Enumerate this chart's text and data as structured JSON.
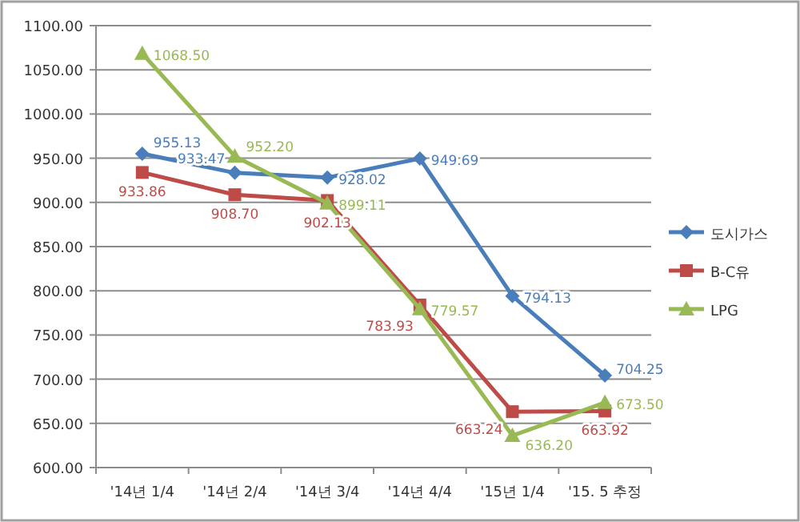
{
  "chart_data": {
    "type": "line",
    "categories": [
      "'14년 1/4",
      "'14년 2/4",
      "'14년 3/4",
      "'14년 4/4",
      "'15년 1/4",
      "'15. 5 추정"
    ],
    "series": [
      {
        "name": "도시가스",
        "color": "#4a7ebb",
        "marker": "diamond",
        "values": [
          955.13,
          933.47,
          928.02,
          949.69,
          794.13,
          704.25
        ],
        "value_labels": [
          "955.13",
          "933.47",
          "928.02",
          "949.69",
          "794.13",
          "704.25"
        ]
      },
      {
        "name": "B-C유",
        "color": "#be4b48",
        "marker": "square",
        "values": [
          933.86,
          908.7,
          902.13,
          783.93,
          663.24,
          663.92
        ],
        "value_labels": [
          "933.86",
          "908.70",
          "902.13",
          "783.93",
          "663.24",
          "663.92"
        ]
      },
      {
        "name": "LPG",
        "color": "#98b954",
        "marker": "triangle",
        "values": [
          1068.5,
          952.2,
          899.11,
          779.57,
          636.2,
          673.5
        ],
        "value_labels": [
          "1068.50",
          "952.20",
          "899.11",
          "779.57",
          "636.20",
          "673.50"
        ]
      }
    ],
    "ylim": [
      600,
      1100
    ],
    "yticks": [
      {
        "value": 600,
        "label": "600.00"
      },
      {
        "value": 650,
        "label": "650.00"
      },
      {
        "value": 700,
        "label": "700.00"
      },
      {
        "value": 750,
        "label": "750.00"
      },
      {
        "value": 800,
        "label": "800.00"
      },
      {
        "value": 850,
        "label": "850.00"
      },
      {
        "value": 900,
        "label": "900.00"
      },
      {
        "value": 950,
        "label": "950.00"
      },
      {
        "value": 1000,
        "label": "1000.00"
      },
      {
        "value": 1050,
        "label": "1050.00"
      },
      {
        "value": 1100,
        "label": "1100.00"
      }
    ],
    "grid": "y",
    "legend": "right",
    "line_style": "solid"
  }
}
